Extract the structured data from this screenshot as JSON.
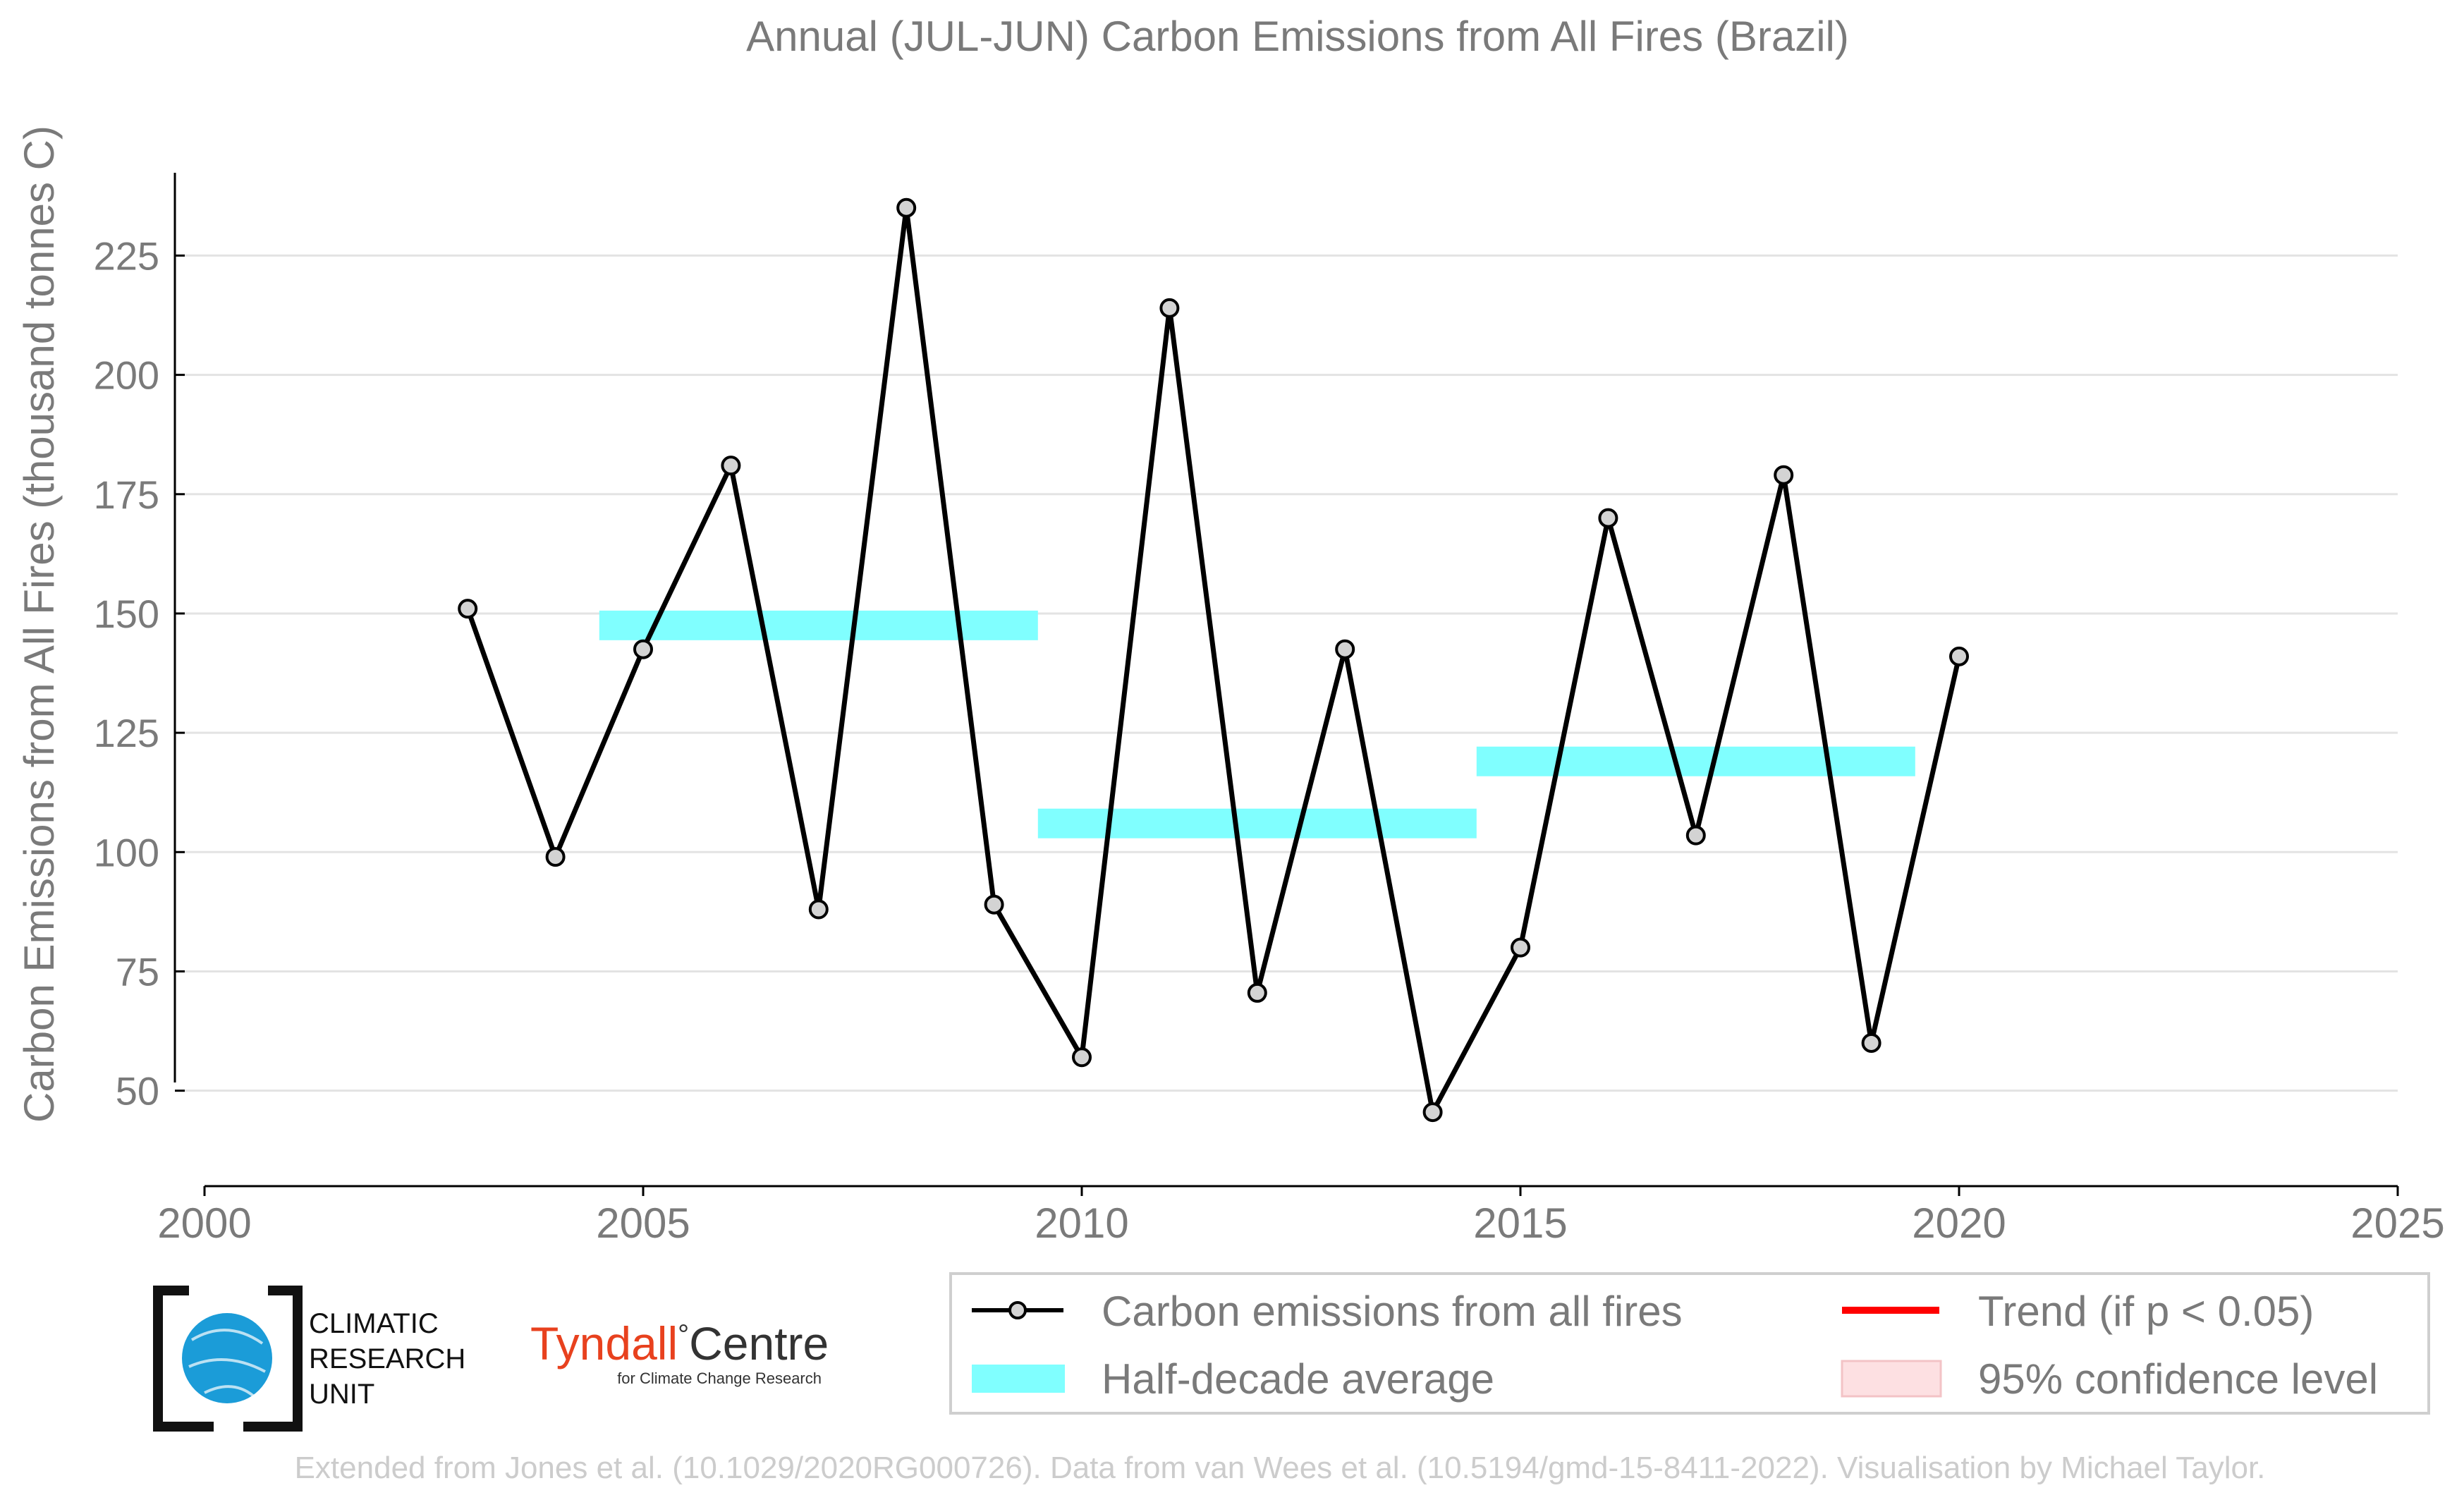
{
  "chart_data": {
    "type": "line",
    "title": "Annual (JUL-JUN) Carbon Emissions from All Fires (Brazil)",
    "xlabel": "",
    "ylabel": "Carbon Emissions from All Fires (thousand tonnes C)",
    "xlim": [
      2000,
      2025
    ],
    "ylim": [
      30,
      249
    ],
    "xticks": [
      2000,
      2005,
      2010,
      2015,
      2020,
      2025
    ],
    "yticks": [
      50,
      75,
      100,
      125,
      150,
      175,
      200,
      225
    ],
    "grid": "horizontal",
    "legend_placement": "bottom-right",
    "series": [
      {
        "name": "Carbon emissions from all fires",
        "color": "#000000",
        "marker_fill": "#d3d3d3",
        "x": [
          2003,
          2004,
          2005,
          2006,
          2007,
          2008,
          2009,
          2010,
          2011,
          2012,
          2013,
          2014,
          2015,
          2016,
          2017,
          2018,
          2019,
          2020
        ],
        "y": [
          151,
          99,
          142.5,
          181,
          88,
          235,
          89,
          57,
          214,
          70.5,
          142.5,
          45.5,
          80,
          170,
          103.5,
          179,
          60,
          141
        ]
      }
    ],
    "half_decade_averages": {
      "name": "Half-decade average",
      "color": "#80ffff",
      "segments": [
        {
          "x0": 2004.5,
          "x1": 2009.5,
          "y": 147.5
        },
        {
          "x0": 2009.5,
          "x1": 2014.5,
          "y": 106
        },
        {
          "x0": 2014.5,
          "x1": 2019.5,
          "y": 119
        }
      ]
    },
    "legend": [
      {
        "key": "series",
        "label": "Carbon emissions from all fires"
      },
      {
        "key": "trend",
        "label": "Trend (if p < 0.05)",
        "color": "#ff0000"
      },
      {
        "key": "average",
        "label": "Half-decade average",
        "color": "#80ffff"
      },
      {
        "key": "ci",
        "label": "95% confidence level",
        "color": "#fde0e2"
      }
    ]
  },
  "logos": {
    "cru": {
      "lines": [
        "CLIMATIC",
        "RESEARCH",
        "UNIT"
      ],
      "color": "#1b9cd8"
    },
    "tyndall": {
      "name_left": "Tyndall",
      "degree": "°",
      "name_right": "Centre",
      "subtitle": "for Climate Change Research",
      "color": "#e8411e"
    }
  },
  "footer": {
    "credit": "Extended from Jones et al. (10.1029/2020RG000726). Data from van Wees et al. (10.5194/gmd-15-8411-2022). Visualisation by Michael Taylor."
  },
  "colors": {
    "text_gray": "#7a7a7a",
    "grid": "#e3e3e3",
    "footer_gray": "#cccccc"
  }
}
